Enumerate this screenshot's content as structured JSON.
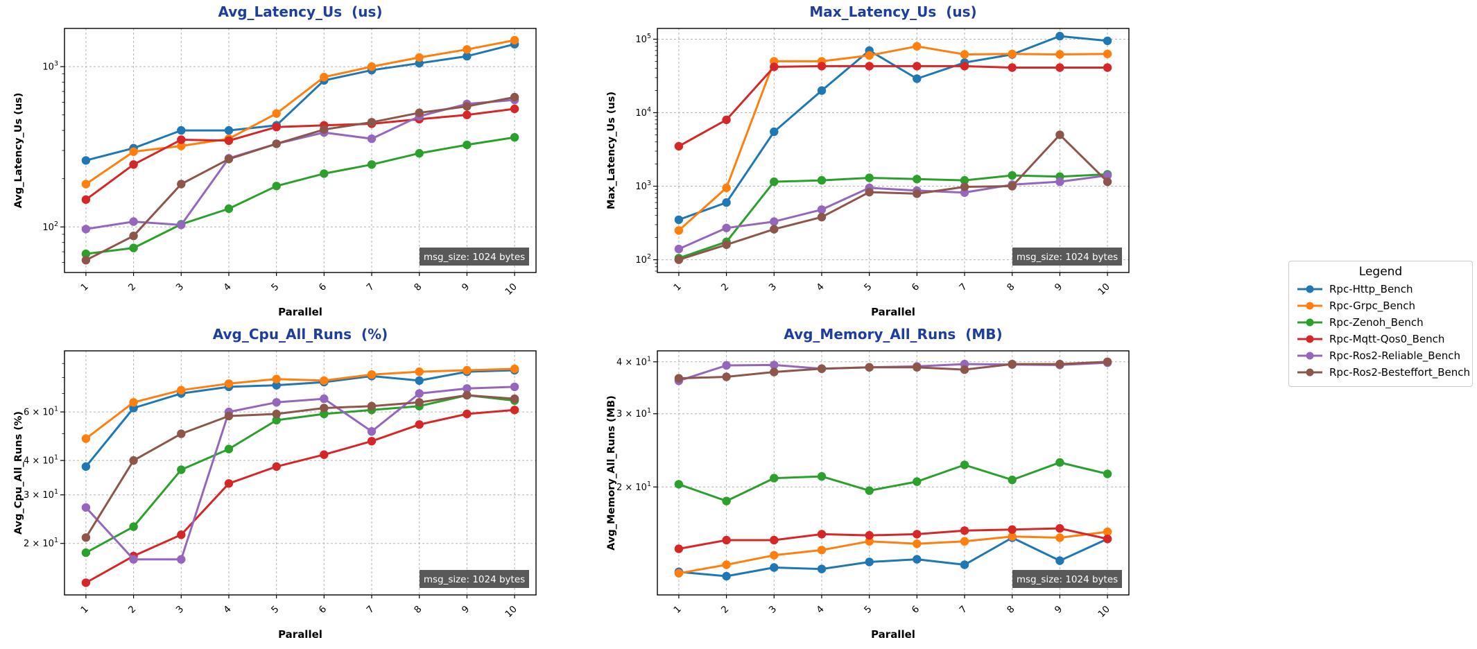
{
  "figure": {
    "background": "#ffffff",
    "title_color": "#1e3d9e",
    "grid_color": "#b3b3b3",
    "badge_bg": "#595959",
    "badge_fg": "#ffffff"
  },
  "legend": {
    "title": "Legend",
    "items": [
      {
        "label": "Rpc-Http_Bench",
        "color": "#1f77b4"
      },
      {
        "label": "Rpc-Grpc_Bench",
        "color": "#ff7f0e"
      },
      {
        "label": "Rpc-Zenoh_Bench",
        "color": "#2ca02c"
      },
      {
        "label": "Rpc-Mqtt-Qos0_Bench",
        "color": "#d62728"
      },
      {
        "label": "Rpc-Ros2-Reliable_Bench",
        "color": "#9467bd"
      },
      {
        "label": "Rpc-Ros2-Besteffort_Bench",
        "color": "#8c564b"
      }
    ]
  },
  "chart_data": [
    {
      "type": "line",
      "title": "Avg_Latency_Us  (us)",
      "xlabel": "Parallel",
      "ylabel": "Avg_Latency_Us (us)",
      "yscale": "log",
      "grid": true,
      "annotation": "msg_size: 1024 bytes",
      "x": [
        1,
        2,
        3,
        4,
        5,
        6,
        7,
        8,
        9,
        10
      ],
      "xlim": [
        0.55,
        10.45
      ],
      "ylim": [
        52,
        1730
      ],
      "yticks": [
        {
          "v": 100,
          "pre": "",
          "exp": "2"
        },
        {
          "v": 1000,
          "pre": "",
          "exp": "3"
        }
      ],
      "series": [
        {
          "name": "Rpc-Http_Bench",
          "color": "#1f77b4",
          "values": [
            260,
            310,
            400,
            400,
            430,
            820,
            950,
            1050,
            1160,
            1380
          ]
        },
        {
          "name": "Rpc-Grpc_Bench",
          "color": "#ff7f0e",
          "values": [
            185,
            295,
            320,
            355,
            510,
            860,
            1000,
            1140,
            1280,
            1460
          ]
        },
        {
          "name": "Rpc-Zenoh_Bench",
          "color": "#2ca02c",
          "values": [
            68,
            74,
            104,
            130,
            180,
            215,
            245,
            288,
            325,
            362
          ]
        },
        {
          "name": "Rpc-Mqtt-Qos0_Bench",
          "color": "#d62728",
          "values": [
            148,
            245,
            350,
            345,
            420,
            430,
            440,
            470,
            500,
            545
          ]
        },
        {
          "name": "Rpc-Ros2-Reliable_Bench",
          "color": "#9467bd",
          "values": [
            97,
            108,
            103,
            268,
            330,
            388,
            355,
            490,
            585,
            620
          ]
        },
        {
          "name": "Rpc-Ros2-Besteffort_Bench",
          "color": "#8c564b",
          "values": [
            62,
            88,
            185,
            265,
            330,
            405,
            450,
            515,
            565,
            645
          ]
        }
      ]
    },
    {
      "type": "line",
      "title": "Max_Latency_Us  (us)",
      "xlabel": "Parallel",
      "ylabel": "Max_Latency_Us (us)",
      "yscale": "log",
      "grid": true,
      "annotation": "msg_size: 1024 bytes",
      "x": [
        1,
        2,
        3,
        4,
        5,
        6,
        7,
        8,
        9,
        10
      ],
      "xlim": [
        0.55,
        10.45
      ],
      "ylim": [
        67,
        140000
      ],
      "yticks": [
        {
          "v": 100,
          "pre": "",
          "exp": "2"
        },
        {
          "v": 1000,
          "pre": "",
          "exp": "3"
        },
        {
          "v": 10000,
          "pre": "",
          "exp": "4"
        },
        {
          "v": 100000,
          "pre": "",
          "exp": "5"
        }
      ],
      "series": [
        {
          "name": "Rpc-Http_Bench",
          "color": "#1f77b4",
          "values": [
            350,
            600,
            5500,
            20000,
            70000,
            29000,
            48000,
            62000,
            110000,
            95000
          ]
        },
        {
          "name": "Rpc-Grpc_Bench",
          "color": "#ff7f0e",
          "values": [
            250,
            950,
            50000,
            50000,
            60000,
            80000,
            62000,
            63000,
            62000,
            63000
          ]
        },
        {
          "name": "Rpc-Zenoh_Bench",
          "color": "#2ca02c",
          "values": [
            105,
            175,
            1150,
            1200,
            1300,
            1250,
            1200,
            1400,
            1350,
            1450
          ]
        },
        {
          "name": "Rpc-Mqtt-Qos0_Bench",
          "color": "#d62728",
          "values": [
            3500,
            8000,
            42000,
            43000,
            43000,
            43000,
            43000,
            41000,
            41000,
            41000
          ]
        },
        {
          "name": "Rpc-Ros2-Reliable_Bench",
          "color": "#9467bd",
          "values": [
            140,
            270,
            330,
            480,
            950,
            870,
            820,
            1050,
            1150,
            1400
          ]
        },
        {
          "name": "Rpc-Ros2-Besteffort_Bench",
          "color": "#8c564b",
          "values": [
            100,
            160,
            260,
            380,
            830,
            790,
            980,
            1000,
            5000,
            1150
          ]
        }
      ]
    },
    {
      "type": "line",
      "title": "Avg_Cpu_All_Runs  (%)",
      "xlabel": "Parallel",
      "ylabel": "Avg_Cpu_All_Runs (%)",
      "yscale": "log",
      "grid": true,
      "annotation": "msg_size: 1024 bytes",
      "x": [
        1,
        2,
        3,
        4,
        5,
        6,
        7,
        8,
        9,
        10
      ],
      "xlim": [
        0.55,
        10.45
      ],
      "ylim": [
        13,
        100
      ],
      "yticks": [
        {
          "v": 20,
          "pre": "2 × ",
          "exp": "1"
        },
        {
          "v": 30,
          "pre": "3 × ",
          "exp": "1"
        },
        {
          "v": 40,
          "pre": "4 × ",
          "exp": "1"
        },
        {
          "v": 60,
          "pre": "6 × ",
          "exp": "1"
        }
      ],
      "series": [
        {
          "name": "Rpc-Http_Bench",
          "color": "#1f77b4",
          "values": [
            38,
            62,
            70,
            74,
            75,
            77,
            81,
            78,
            84,
            85
          ]
        },
        {
          "name": "Rpc-Grpc_Bench",
          "color": "#ff7f0e",
          "values": [
            48,
            65,
            72,
            76,
            79,
            78,
            82,
            84,
            85,
            86
          ]
        },
        {
          "name": "Rpc-Zenoh_Bench",
          "color": "#2ca02c",
          "values": [
            18.5,
            23,
            37,
            44,
            56,
            59,
            61,
            63,
            69,
            66
          ]
        },
        {
          "name": "Rpc-Mqtt-Qos0_Bench",
          "color": "#d62728",
          "values": [
            14.4,
            18,
            21.5,
            33,
            38,
            42,
            47,
            54,
            59,
            61
          ]
        },
        {
          "name": "Rpc-Ros2-Reliable_Bench",
          "color": "#9467bd",
          "values": [
            27,
            17.5,
            17.5,
            60,
            65,
            67,
            51,
            70,
            73,
            74
          ]
        },
        {
          "name": "Rpc-Ros2-Besteffort_Bench",
          "color": "#8c564b",
          "values": [
            21,
            40,
            50,
            58,
            59,
            62,
            63,
            65,
            69,
            67
          ]
        }
      ]
    },
    {
      "type": "line",
      "title": "Avg_Memory_All_Runs  (MB)",
      "xlabel": "Parallel",
      "ylabel": "Avg_Memory_All_Runs (MB)",
      "yscale": "log",
      "grid": true,
      "annotation": "msg_size: 1024 bytes",
      "x": [
        1,
        2,
        3,
        4,
        5,
        6,
        7,
        8,
        9,
        10
      ],
      "xlim": [
        0.55,
        10.45
      ],
      "ylim": [
        11,
        42.5
      ],
      "yticks": [
        {
          "v": 20,
          "pre": "2 × ",
          "exp": "1"
        },
        {
          "v": 30,
          "pre": "3 × ",
          "exp": "1"
        },
        {
          "v": 40,
          "pre": "4 × ",
          "exp": "1"
        }
      ],
      "series": [
        {
          "name": "Rpc-Http_Bench",
          "color": "#1f77b4",
          "values": [
            12.5,
            12.2,
            12.8,
            12.7,
            13.2,
            13.4,
            13.0,
            15.1,
            13.3,
            15.0
          ]
        },
        {
          "name": "Rpc-Grpc_Bench",
          "color": "#ff7f0e",
          "values": [
            12.4,
            13.0,
            13.7,
            14.1,
            14.8,
            14.6,
            14.8,
            15.2,
            15.1,
            15.6
          ]
        },
        {
          "name": "Rpc-Zenoh_Bench",
          "color": "#2ca02c",
          "values": [
            20.3,
            18.5,
            21.0,
            21.2,
            19.6,
            20.6,
            22.6,
            20.8,
            22.9,
            21.5
          ]
        },
        {
          "name": "Rpc-Mqtt-Qos0_Bench",
          "color": "#d62728",
          "values": [
            14.2,
            14.9,
            14.9,
            15.4,
            15.3,
            15.4,
            15.7,
            15.8,
            15.9,
            15.0
          ]
        },
        {
          "name": "Rpc-Ros2-Reliable_Bench",
          "color": "#9467bd",
          "values": [
            36.0,
            39.2,
            39.3,
            38.5,
            38.8,
            39.0,
            39.5,
            39.4,
            39.3,
            39.8
          ]
        },
        {
          "name": "Rpc-Ros2-Besteffort_Bench",
          "color": "#8c564b",
          "values": [
            36.5,
            36.8,
            37.8,
            38.5,
            38.8,
            38.8,
            38.3,
            39.5,
            39.5,
            40.0
          ]
        }
      ]
    }
  ]
}
